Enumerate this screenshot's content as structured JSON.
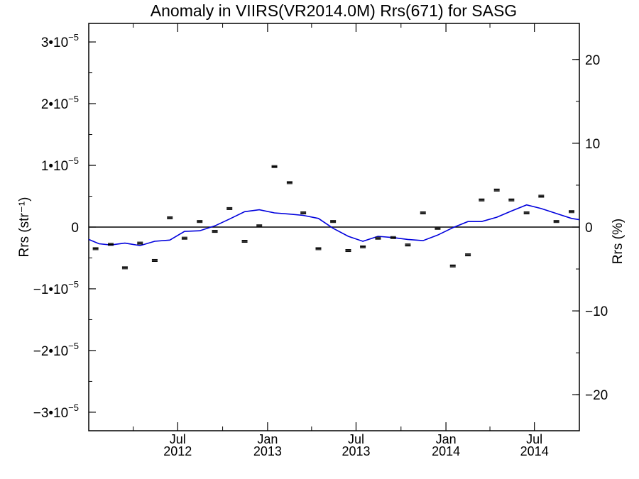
{
  "chart_data": {
    "type": "scatter",
    "title": "Anomaly in VIIRS(VR2014.0M) Rrs(671) for SASG",
    "ylabel_left": "Rrs (str⁻¹)",
    "ylabel_right": "Rrs (%)",
    "x_tick_labels": [
      {
        "month": "Jul",
        "year": "2012",
        "date": "2012-07-01"
      },
      {
        "month": "Jan",
        "year": "2013",
        "date": "2013-01-01"
      },
      {
        "month": "Jul",
        "year": "2013",
        "date": "2013-07-01"
      },
      {
        "month": "Jan",
        "year": "2014",
        "date": "2014-01-01"
      },
      {
        "month": "Jul",
        "year": "2014",
        "date": "2014-07-01"
      }
    ],
    "xlim": [
      "2012-01-01",
      "2014-10-01"
    ],
    "ylim_left": [
      -3.3e-05,
      3.3e-05
    ],
    "ylim_right": [
      -24.3,
      24.3
    ],
    "left_ticks": [
      {
        "value": 3e-05,
        "mantissa": "3•10",
        "exp": "−5"
      },
      {
        "value": 2e-05,
        "mantissa": "2•10",
        "exp": "−5"
      },
      {
        "value": 1e-05,
        "mantissa": "1•10",
        "exp": "−5"
      },
      {
        "value": 0,
        "mantissa": "0",
        "exp": ""
      },
      {
        "value": -1e-05,
        "mantissa": "−1•10",
        "exp": "−5"
      },
      {
        "value": -2e-05,
        "mantissa": "−2•10",
        "exp": "−5"
      },
      {
        "value": -3e-05,
        "mantissa": "−3•10",
        "exp": "−5"
      }
    ],
    "right_ticks": [
      {
        "value": 20,
        "label": "20"
      },
      {
        "value": 10,
        "label": "10"
      },
      {
        "value": 0,
        "label": "0"
      },
      {
        "value": -10,
        "label": "−10"
      },
      {
        "value": -20,
        "label": "−20"
      }
    ],
    "reference_line": 0,
    "series": [
      {
        "kind": "points_with_error_bars",
        "color": "#000000",
        "points": [
          {
            "x": "2012-01-15",
            "y": -3.5e-06
          },
          {
            "x": "2012-02-15",
            "y": -2.8e-06
          },
          {
            "x": "2012-03-15",
            "y": -6.6e-06
          },
          {
            "x": "2012-04-15",
            "y": -2.6e-06
          },
          {
            "x": "2012-05-15",
            "y": -5.4e-06
          },
          {
            "x": "2012-06-15",
            "y": 1.5e-06
          },
          {
            "x": "2012-07-15",
            "y": -1.8e-06
          },
          {
            "x": "2012-08-15",
            "y": 9e-07
          },
          {
            "x": "2012-09-15",
            "y": -7e-07
          },
          {
            "x": "2012-10-15",
            "y": 3e-06
          },
          {
            "x": "2012-11-15",
            "y": -2.3e-06
          },
          {
            "x": "2012-12-15",
            "y": 2e-07
          },
          {
            "x": "2013-01-15",
            "y": 9.8e-06
          },
          {
            "x": "2013-02-15",
            "y": 7.2e-06
          },
          {
            "x": "2013-03-15",
            "y": 2.3e-06
          },
          {
            "x": "2013-04-15",
            "y": -3.5e-06
          },
          {
            "x": "2013-05-15",
            "y": 9e-07
          },
          {
            "x": "2013-06-15",
            "y": -3.8e-06
          },
          {
            "x": "2013-07-15",
            "y": -3.2e-06
          },
          {
            "x": "2013-08-15",
            "y": -1.8e-06
          },
          {
            "x": "2013-09-15",
            "y": -1.7e-06
          },
          {
            "x": "2013-10-15",
            "y": -2.9e-06
          },
          {
            "x": "2013-11-15",
            "y": 2.3e-06
          },
          {
            "x": "2013-12-15",
            "y": -2e-07
          },
          {
            "x": "2014-01-15",
            "y": -6.3e-06
          },
          {
            "x": "2014-02-15",
            "y": -4.5e-06
          },
          {
            "x": "2014-03-15",
            "y": 4.4e-06
          },
          {
            "x": "2014-04-15",
            "y": 6e-06
          },
          {
            "x": "2014-05-15",
            "y": 4.4e-06
          },
          {
            "x": "2014-06-15",
            "y": 2.3e-06
          },
          {
            "x": "2014-07-15",
            "y": 5e-06
          },
          {
            "x": "2014-08-15",
            "y": 9e-07
          },
          {
            "x": "2014-09-15",
            "y": 2.5e-06
          }
        ]
      },
      {
        "kind": "line",
        "color": "#0000dd",
        "points": [
          {
            "x": "2012-01-01",
            "y": -2e-06
          },
          {
            "x": "2012-01-22",
            "y": -2.7e-06
          },
          {
            "x": "2012-02-15",
            "y": -2.9e-06
          },
          {
            "x": "2012-03-15",
            "y": -2.6e-06
          },
          {
            "x": "2012-04-15",
            "y": -3e-06
          },
          {
            "x": "2012-05-15",
            "y": -2.3e-06
          },
          {
            "x": "2012-06-15",
            "y": -2.1e-06
          },
          {
            "x": "2012-07-15",
            "y": -7e-07
          },
          {
            "x": "2012-08-15",
            "y": -6e-07
          },
          {
            "x": "2012-09-15",
            "y": 2e-07
          },
          {
            "x": "2012-10-15",
            "y": 1.3e-06
          },
          {
            "x": "2012-11-15",
            "y": 2.5e-06
          },
          {
            "x": "2012-12-15",
            "y": 2.8e-06
          },
          {
            "x": "2013-01-15",
            "y": 2.3e-06
          },
          {
            "x": "2013-02-15",
            "y": 2.1e-06
          },
          {
            "x": "2013-03-15",
            "y": 1.9e-06
          },
          {
            "x": "2013-04-15",
            "y": 1.4e-06
          },
          {
            "x": "2013-05-15",
            "y": -2e-07
          },
          {
            "x": "2013-06-15",
            "y": -1.5e-06
          },
          {
            "x": "2013-07-15",
            "y": -2.3e-06
          },
          {
            "x": "2013-08-15",
            "y": -1.5e-06
          },
          {
            "x": "2013-09-15",
            "y": -1.7e-06
          },
          {
            "x": "2013-10-15",
            "y": -2e-06
          },
          {
            "x": "2013-11-15",
            "y": -2.2e-06
          },
          {
            "x": "2013-12-15",
            "y": -1.3e-06
          },
          {
            "x": "2014-01-15",
            "y": -1e-07
          },
          {
            "x": "2014-02-15",
            "y": 9e-07
          },
          {
            "x": "2014-03-15",
            "y": 9e-07
          },
          {
            "x": "2014-04-15",
            "y": 1.6e-06
          },
          {
            "x": "2014-05-15",
            "y": 2.6e-06
          },
          {
            "x": "2014-06-15",
            "y": 3.6e-06
          },
          {
            "x": "2014-07-15",
            "y": 3e-06
          },
          {
            "x": "2014-08-15",
            "y": 2.2e-06
          },
          {
            "x": "2014-09-15",
            "y": 1.4e-06
          },
          {
            "x": "2014-10-01",
            "y": 1.2e-06
          }
        ]
      }
    ],
    "grid": false,
    "legend": "none"
  }
}
